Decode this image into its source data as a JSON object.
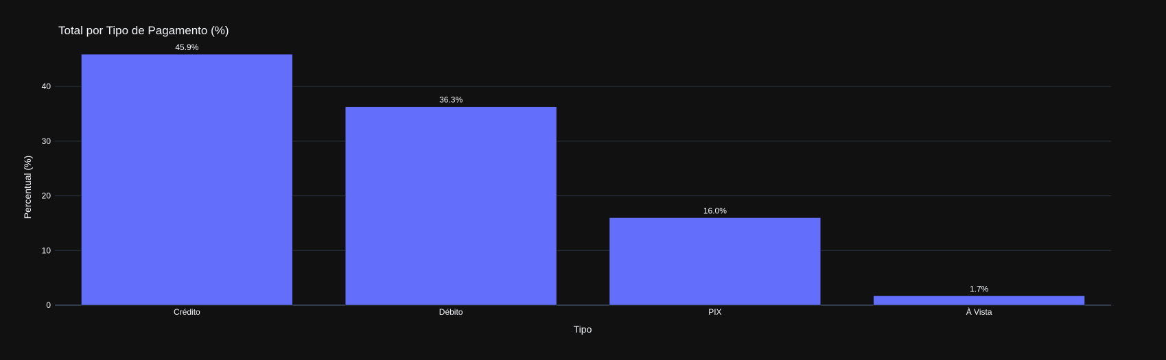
{
  "chart_data": {
    "type": "bar",
    "title": "Total por Tipo de Pagamento (%)",
    "xlabel": "Tipo",
    "ylabel": "Percentual (%)",
    "categories": [
      "Crédito",
      "Débito",
      "PIX",
      "À Vista"
    ],
    "values": [
      45.9,
      36.3,
      16.0,
      1.7
    ],
    "data_labels": [
      "45.9%",
      "36.3%",
      "16.0%",
      "1.7%"
    ],
    "y_ticks": [
      0,
      10,
      20,
      30,
      40
    ],
    "ylim": [
      0,
      48.3
    ],
    "grid": true,
    "bar_color": "#636efa",
    "background_color": "#111111",
    "grid_color": "#283442",
    "text_color": "#f2f5fa"
  }
}
